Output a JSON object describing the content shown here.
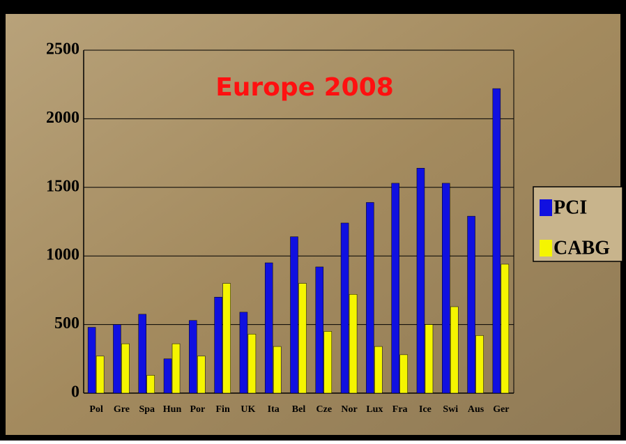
{
  "chart_data": {
    "type": "bar",
    "title": "Europe 2008",
    "categories": [
      "Pol",
      "Gre",
      "Spa",
      "Hun",
      "Por",
      "Fin",
      "UK",
      "Ita",
      "Bel",
      "Cze",
      "Nor",
      "Lux",
      "Fra",
      "Ice",
      "Swi",
      "Aus",
      "Ger"
    ],
    "series": [
      {
        "name": "PCI",
        "color": "#1010e0",
        "values": [
          480,
          500,
          575,
          250,
          530,
          700,
          590,
          950,
          1140,
          920,
          1240,
          1390,
          1530,
          1640,
          1530,
          1290,
          2220
        ]
      },
      {
        "name": "CABG",
        "color": "#f5f500",
        "values": [
          270,
          360,
          130,
          360,
          270,
          800,
          430,
          340,
          800,
          450,
          720,
          340,
          280,
          500,
          630,
          420,
          940
        ]
      }
    ],
    "ylim": [
      0,
      2500
    ],
    "yticks": [
      0,
      500,
      1000,
      1500,
      2000,
      2500
    ],
    "grid": true
  }
}
